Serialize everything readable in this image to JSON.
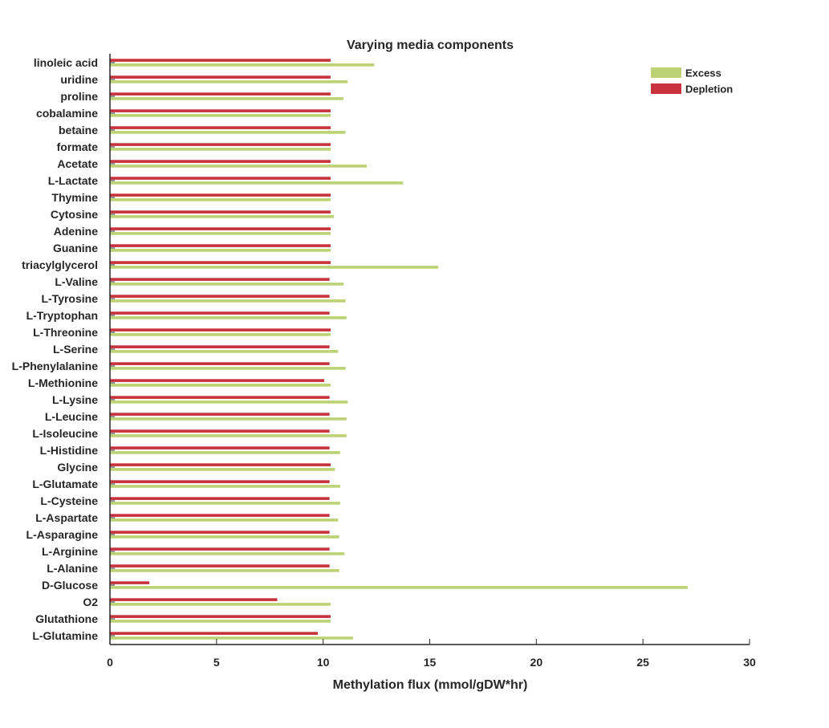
{
  "chart_data": {
    "type": "bar",
    "orientation": "horizontal",
    "title": "Varying media components",
    "xlabel": "Methylation flux (mmol/gDW*hr)",
    "ylabel": "",
    "xlim": [
      0,
      30
    ],
    "xticks": [
      "0",
      "5",
      "10",
      "15",
      "20",
      "25",
      "30"
    ],
    "grid": false,
    "legend_position": "top-right",
    "categories": [
      "linoleic acid",
      "uridine",
      "proline",
      "cobalamine",
      "betaine",
      "formate",
      "Acetate",
      "L-Lactate",
      "Thymine",
      "Cytosine",
      "Adenine",
      "Guanine",
      "triacylglycerol",
      "L-Valine",
      "L-Tyrosine",
      "L-Tryptophan",
      "L-Threonine",
      "L-Serine",
      "L-Phenylalanine",
      "L-Methionine",
      "L-Lysine",
      "L-Leucine",
      "L-Isoleucine",
      "L-Histidine",
      "Glycine",
      "L-Glutamate",
      "L-Cysteine",
      "L-Aspartate",
      "L-Asparagine",
      "L-Arginine",
      "L-Alanine",
      "D-Glucose",
      "O2",
      "Glutathione",
      "L-Glutamine"
    ],
    "series": [
      {
        "name": "Depletion",
        "color": "#c8323c",
        "values": [
          10.35,
          10.35,
          10.35,
          10.35,
          10.35,
          10.35,
          10.35,
          10.35,
          10.35,
          10.35,
          10.35,
          10.35,
          10.35,
          10.3,
          10.3,
          10.3,
          10.35,
          10.3,
          10.3,
          10.05,
          10.3,
          10.3,
          10.3,
          10.3,
          10.35,
          10.3,
          10.3,
          10.3,
          10.3,
          10.3,
          10.3,
          1.85,
          7.85,
          10.35,
          9.75
        ]
      },
      {
        "name": "Excess",
        "color": "#bcd274",
        "values": [
          12.4,
          11.15,
          10.95,
          10.35,
          11.05,
          10.35,
          12.05,
          13.75,
          10.35,
          10.5,
          10.35,
          10.35,
          15.4,
          10.95,
          11.05,
          11.1,
          10.35,
          10.7,
          11.05,
          10.35,
          11.15,
          11.1,
          11.1,
          10.8,
          10.55,
          10.8,
          10.8,
          10.7,
          10.75,
          11.0,
          10.75,
          27.1,
          10.35,
          10.35,
          11.4
        ]
      }
    ]
  }
}
